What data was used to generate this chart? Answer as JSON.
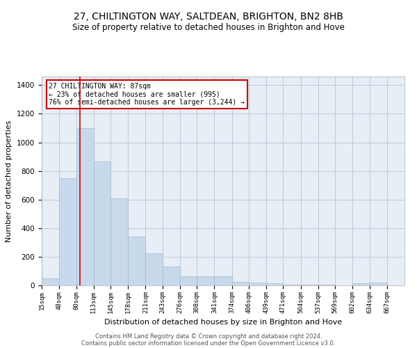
{
  "title": "27, CHILTINGTON WAY, SALTDEAN, BRIGHTON, BN2 8HB",
  "subtitle": "Size of property relative to detached houses in Brighton and Hove",
  "xlabel": "Distribution of detached houses by size in Brighton and Hove",
  "ylabel": "Number of detached properties",
  "footer1": "Contains HM Land Registry data © Crown copyright and database right 2024.",
  "footer2": "Contains public sector information licensed under the Open Government Licence v3.0.",
  "annotation_line1": "27 CHILTINGTON WAY: 87sqm",
  "annotation_line2": "← 23% of detached houses are smaller (995)",
  "annotation_line3": "76% of semi-detached houses are larger (3,244) →",
  "property_sqm": 87,
  "bar_left_edges": [
    15,
    48,
    80,
    113,
    145,
    178,
    211,
    243,
    276,
    308,
    341,
    374,
    406,
    439,
    471,
    504,
    537,
    569,
    602,
    634
  ],
  "bar_widths": [
    33,
    32,
    33,
    32,
    33,
    33,
    32,
    33,
    32,
    33,
    33,
    32,
    33,
    32,
    33,
    33,
    32,
    33,
    32,
    33
  ],
  "bar_heights": [
    50,
    750,
    1100,
    865,
    610,
    340,
    225,
    130,
    65,
    65,
    65,
    25,
    20,
    15,
    5,
    5,
    5,
    0,
    15,
    20
  ],
  "tick_labels": [
    "15sqm",
    "48sqm",
    "80sqm",
    "113sqm",
    "145sqm",
    "178sqm",
    "211sqm",
    "243sqm",
    "276sqm",
    "308sqm",
    "341sqm",
    "374sqm",
    "406sqm",
    "439sqm",
    "471sqm",
    "504sqm",
    "537sqm",
    "569sqm",
    "602sqm",
    "634sqm",
    "667sqm"
  ],
  "tick_positions": [
    15,
    48,
    80,
    113,
    145,
    178,
    211,
    243,
    276,
    308,
    341,
    374,
    406,
    439,
    471,
    504,
    537,
    569,
    602,
    634,
    667
  ],
  "ylim": [
    0,
    1460
  ],
  "xlim": [
    15,
    700
  ],
  "bar_color": "#c9d9ec",
  "bar_edge_color": "#a0b8d0",
  "grid_color": "#c0c8d8",
  "bg_color": "#e8eef6",
  "vline_color": "#cc0000",
  "annotation_box_color": "#cc0000",
  "title_fontsize": 10,
  "subtitle_fontsize": 8.5,
  "axis_label_fontsize": 8,
  "tick_fontsize": 6.5,
  "footer_fontsize": 6,
  "annot_fontsize": 7
}
